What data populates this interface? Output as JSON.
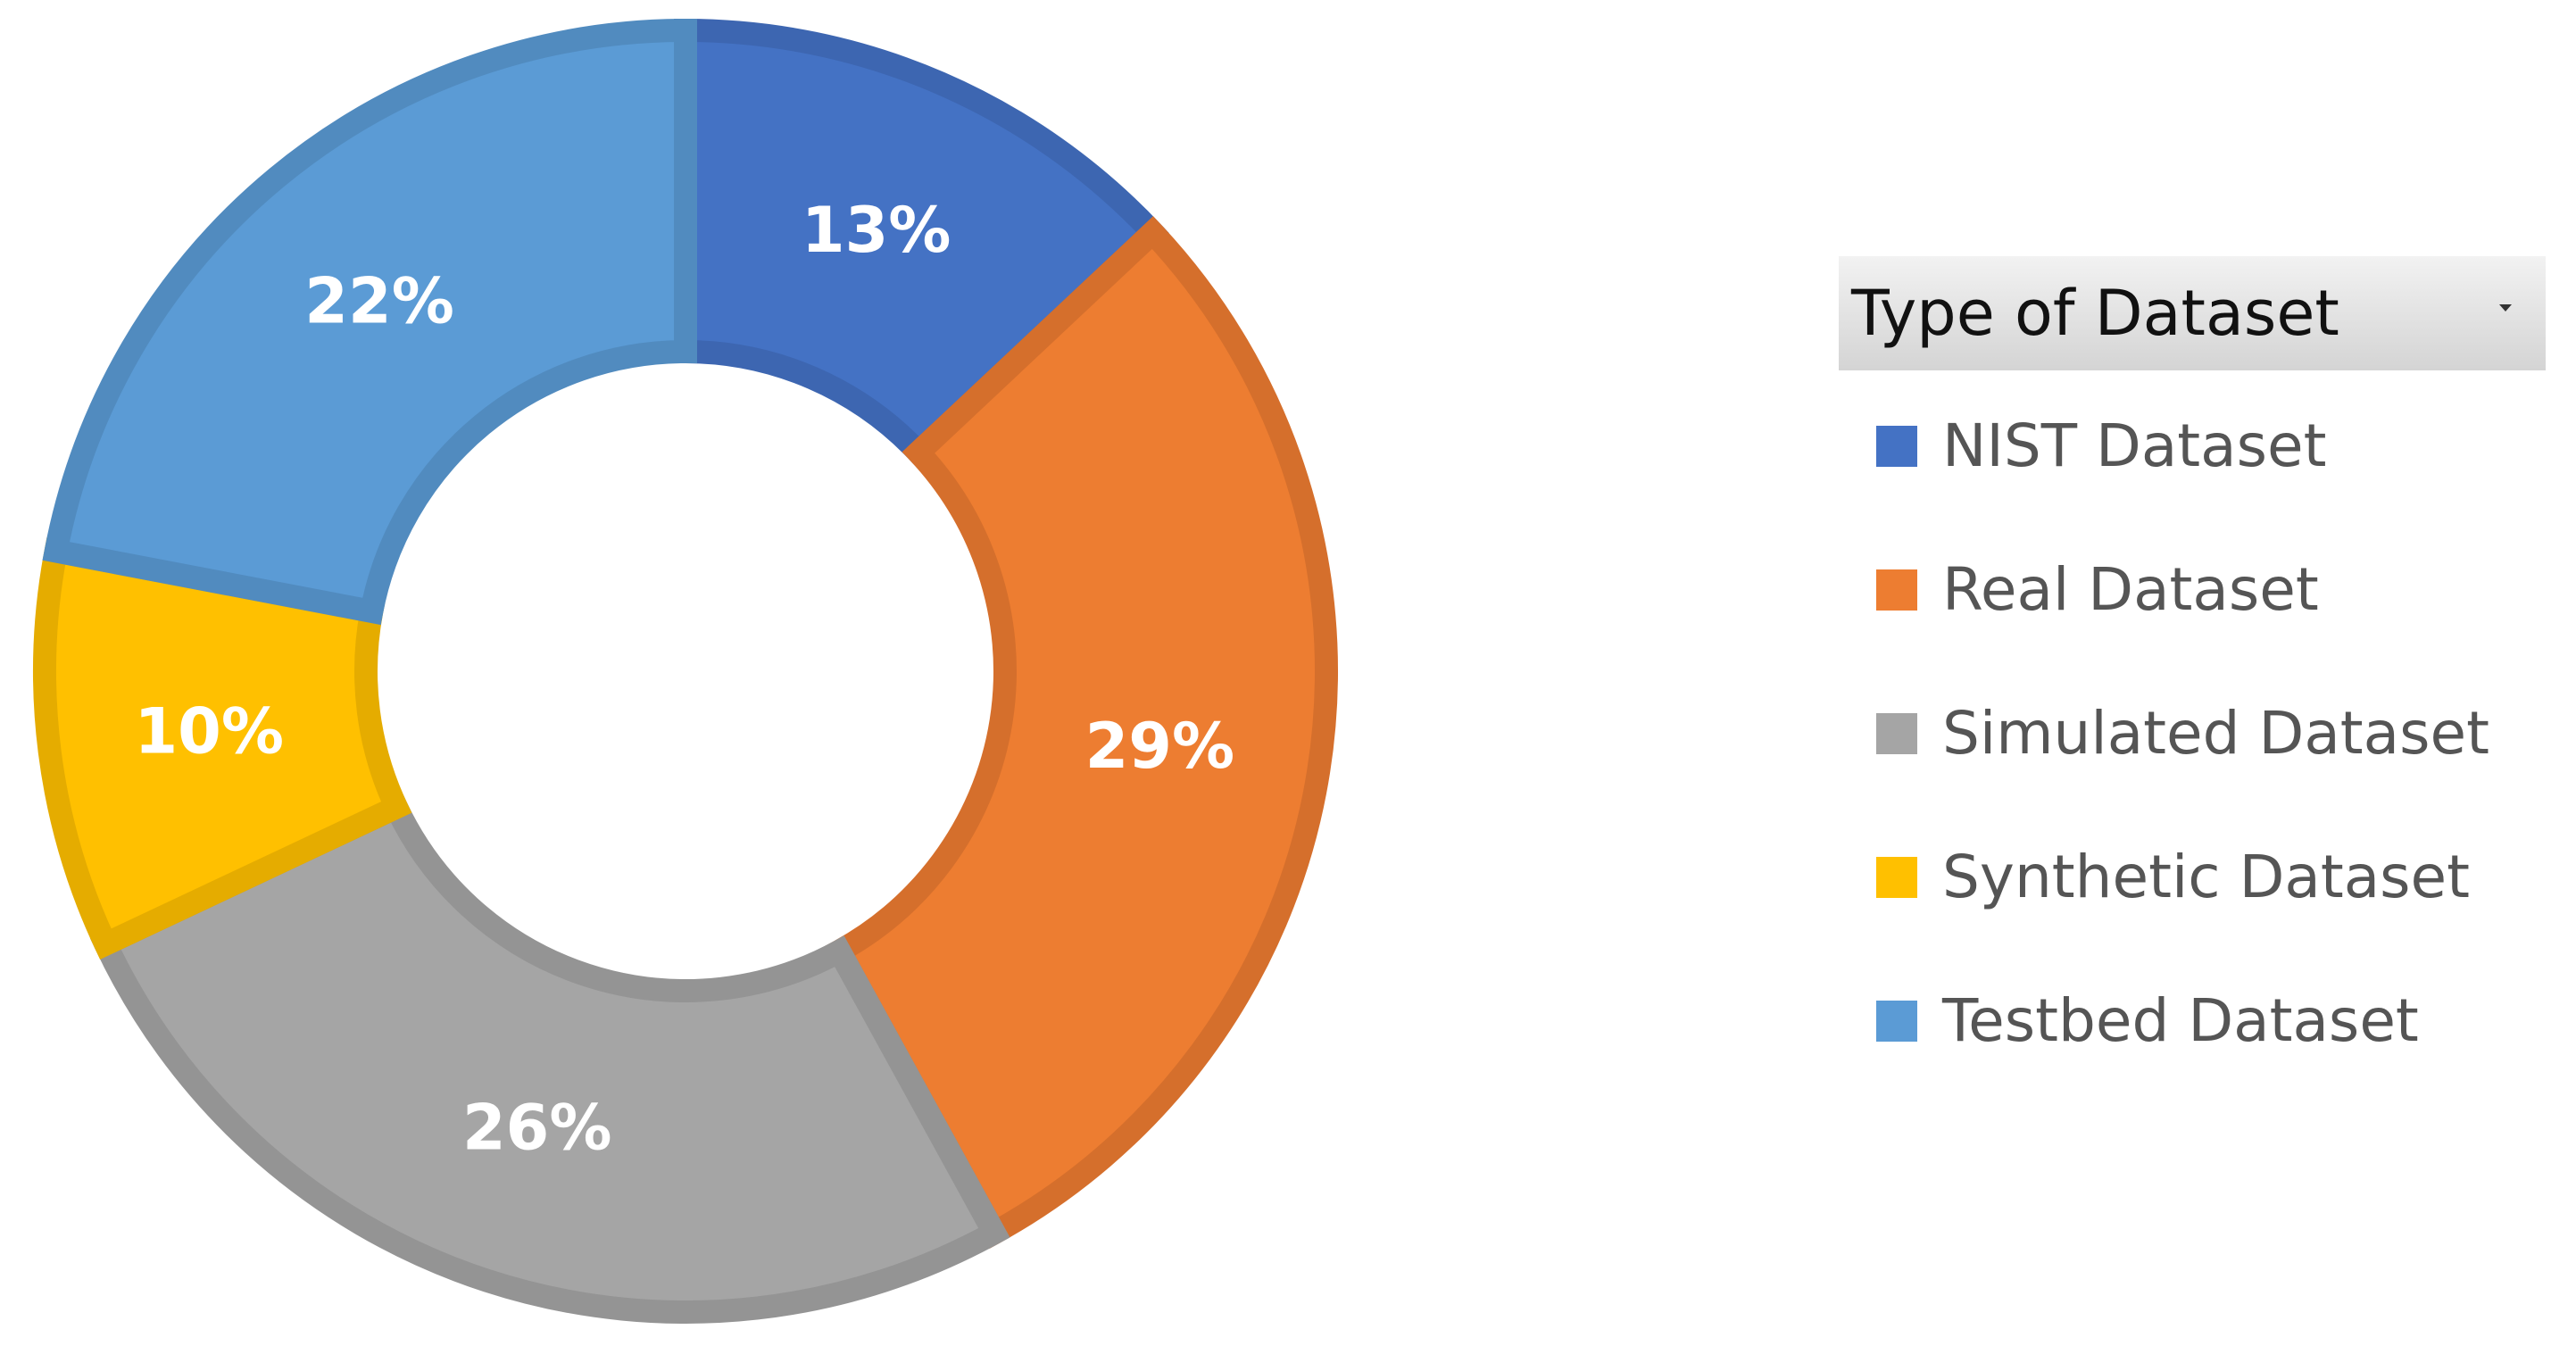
{
  "chart_data": {
    "type": "pie",
    "variant": "donut",
    "legend_position": "right",
    "legend_title": "Type of Dataset",
    "series": [
      {
        "name": "NIST Dataset",
        "value": 13,
        "label": "13%",
        "color": "#4472C4",
        "border": "#3D66B1"
      },
      {
        "name": "Real Dataset",
        "value": 29,
        "label": "29%",
        "color": "#ED7D31",
        "border": "#D56F2C"
      },
      {
        "name": "Simulated Dataset",
        "value": 26,
        "label": "26%",
        "color": "#A5A5A5",
        "border": "#949494"
      },
      {
        "name": "Synthetic Dataset",
        "value": 10,
        "label": "10%",
        "color": "#FFC000",
        "border": "#E5AC00"
      },
      {
        "name": "Testbed Dataset",
        "value": 22,
        "label": "22%",
        "color": "#5B9BD5",
        "border": "#518BBF"
      }
    ]
  },
  "legend_icons": {
    "dropdown": "chevron-down-icon"
  }
}
